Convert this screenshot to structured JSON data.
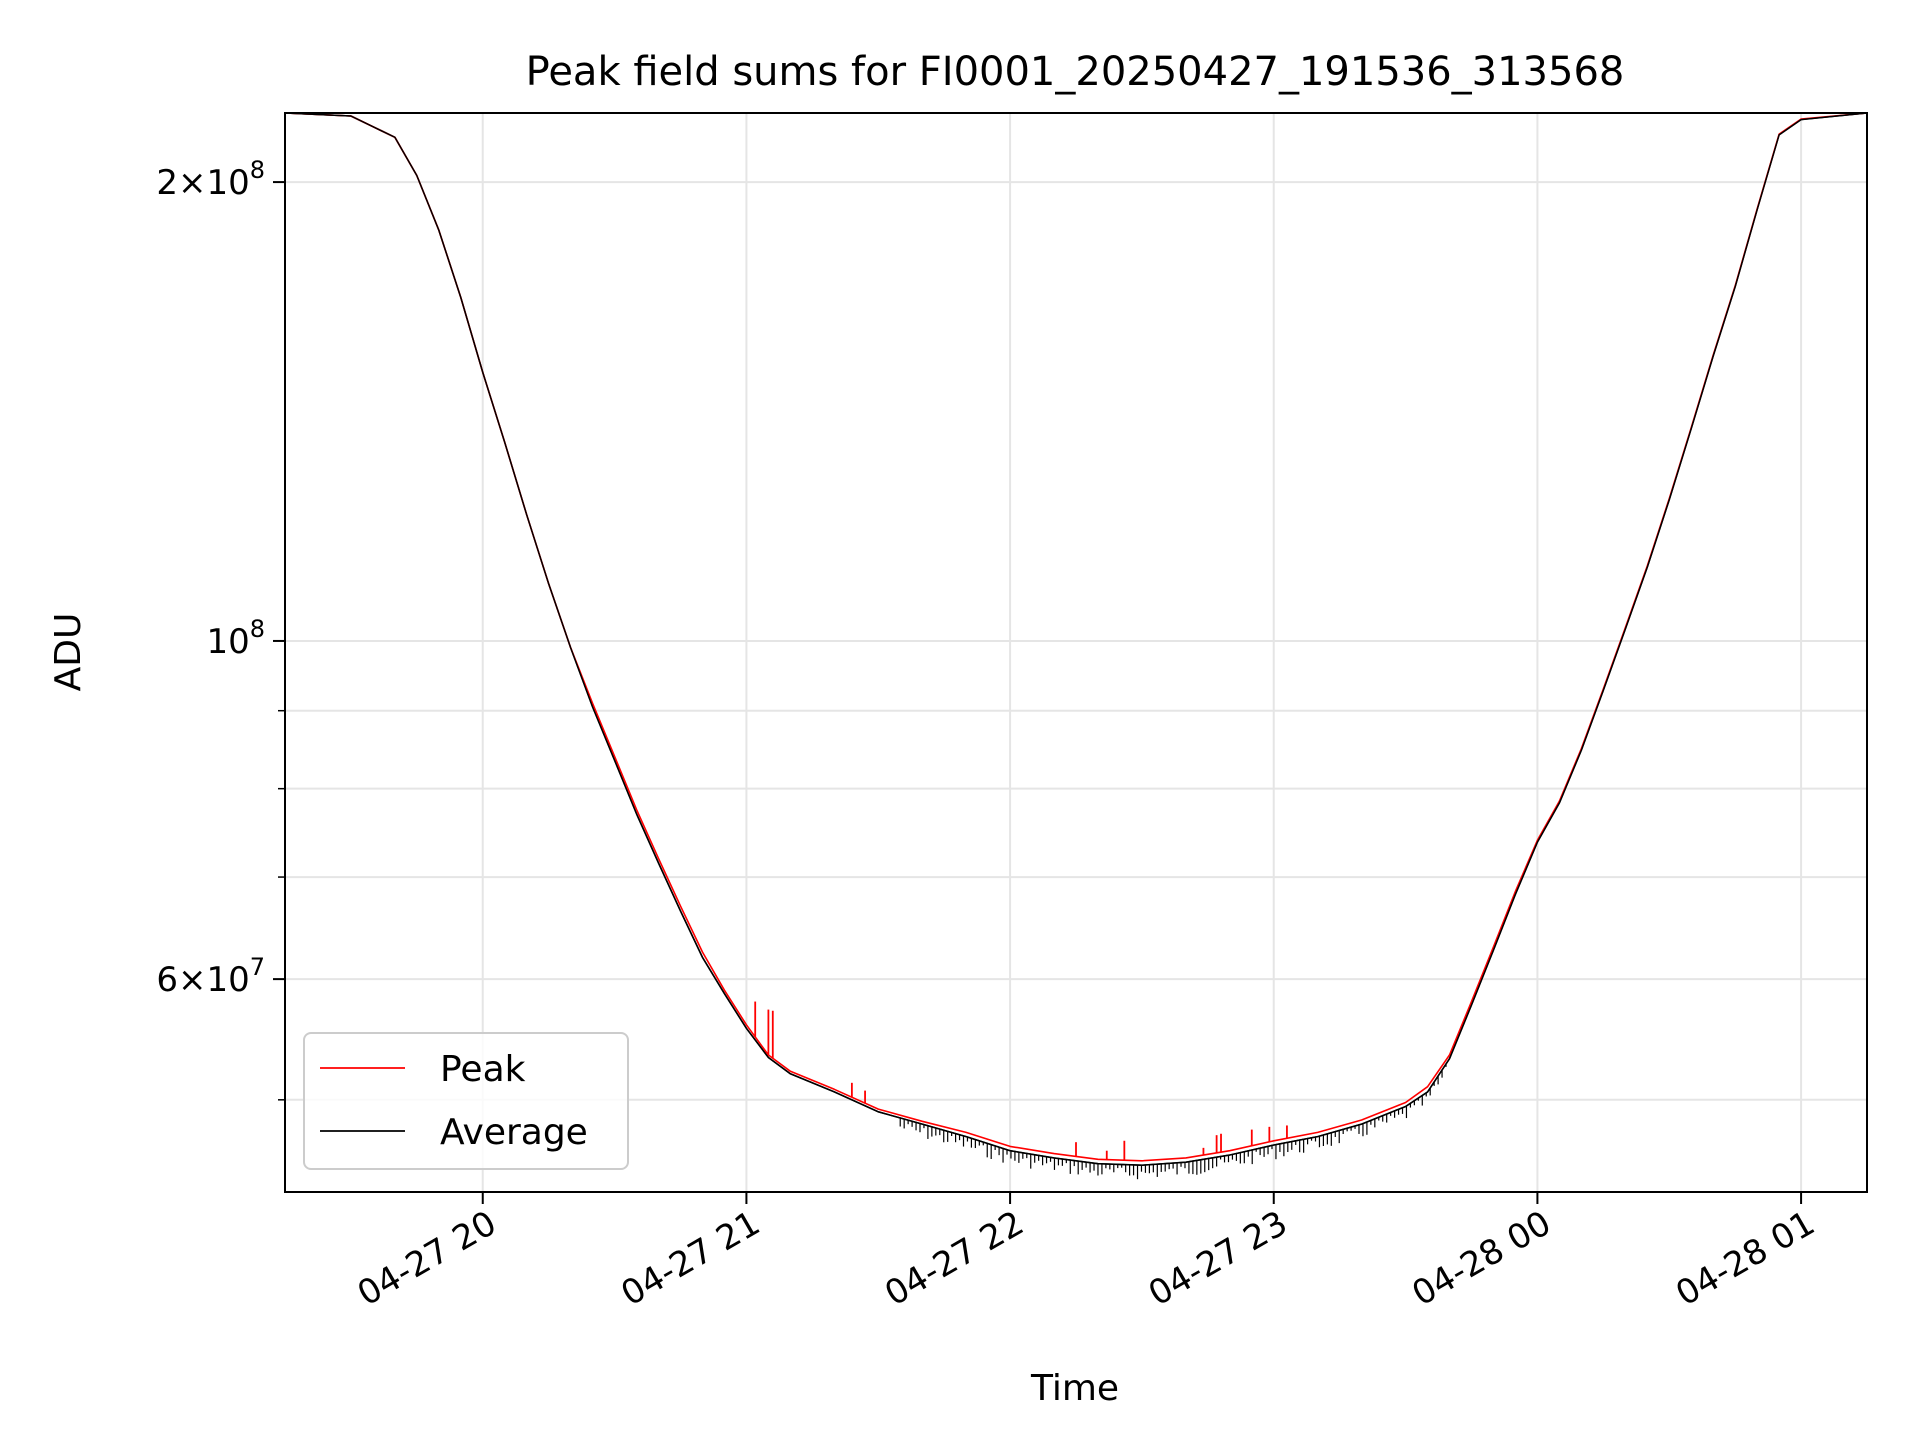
{
  "chart_data": {
    "type": "line",
    "title": "Peak field sums for FI0001_20250427_191536_313568",
    "xlabel": "Time",
    "ylabel": "ADU",
    "y_scale": "log",
    "grid": true,
    "legend_position": "lower-left",
    "xlim": [
      "04-27 19:15",
      "04-28 01:15"
    ],
    "ylim": [
      43500000,
      222000000
    ],
    "x_ticks": [
      {
        "t": "04-27 20:00",
        "label": "04-27 20"
      },
      {
        "t": "04-27 21:00",
        "label": "04-27 21"
      },
      {
        "t": "04-27 22:00",
        "label": "04-27 22"
      },
      {
        "t": "04-27 23:00",
        "label": "04-27 23"
      },
      {
        "t": "04-28 00:00",
        "label": "04-28 00"
      },
      {
        "t": "04-28 01:00",
        "label": "04-28 01"
      }
    ],
    "y_major_ticks": [
      {
        "value": 60000000,
        "base": "6",
        "exp": "7"
      },
      {
        "value": 100000000,
        "base": "",
        "exp": "8"
      },
      {
        "value": 200000000,
        "base": "2",
        "exp": "8"
      }
    ],
    "y_minor_ticks": [
      50000000,
      70000000,
      80000000,
      90000000
    ],
    "series": [
      {
        "name": "Peak",
        "color": "#ff0000",
        "x": [
          "04-27 19:15",
          "04-27 19:30",
          "04-27 19:40",
          "04-27 19:45",
          "04-27 19:50",
          "04-27 19:55",
          "04-27 20:00",
          "04-27 20:05",
          "04-27 20:10",
          "04-27 20:15",
          "04-27 20:20",
          "04-27 20:25",
          "04-27 20:30",
          "04-27 20:35",
          "04-27 20:40",
          "04-27 20:45",
          "04-27 20:50",
          "04-27 20:55",
          "04-27 21:00",
          "04-27 21:05",
          "04-27 21:10",
          "04-27 21:20",
          "04-27 21:30",
          "04-27 21:40",
          "04-27 21:50",
          "04-27 22:00",
          "04-27 22:10",
          "04-27 22:20",
          "04-27 22:30",
          "04-27 22:40",
          "04-27 22:50",
          "04-27 23:00",
          "04-27 23:10",
          "04-27 23:20",
          "04-27 23:30",
          "04-27 23:35",
          "04-27 23:40",
          "04-27 23:45",
          "04-27 23:50",
          "04-27 23:55",
          "04-28 00:00",
          "04-28 00:05",
          "04-28 00:10",
          "04-28 00:15",
          "04-28 00:20",
          "04-28 00:25",
          "04-28 00:30",
          "04-28 00:35",
          "04-28 00:40",
          "04-28 00:45",
          "04-28 00:50",
          "04-28 00:55",
          "04-28 01:00",
          "04-28 01:15"
        ],
        "values": [
          222000000,
          221000000,
          214000000,
          202000000,
          186000000,
          168000000,
          150000000,
          135000000,
          121000000,
          109000000,
          99000000,
          91000000,
          84000000,
          77500000,
          72000000,
          67000000,
          62500000,
          59000000,
          56000000,
          53500000,
          52200000,
          50800000,
          49300000,
          48400000,
          47600000,
          46600000,
          46100000,
          45700000,
          45600000,
          45800000,
          46300000,
          47000000,
          47600000,
          48500000,
          49800000,
          51000000,
          53500000,
          58000000,
          63000000,
          68500000,
          74000000,
          78500000,
          85000000,
          93000000,
          102000000,
          112000000,
          124000000,
          138000000,
          154000000,
          171000000,
          192000000,
          215000000,
          220000000,
          222000000
        ],
        "spikes": [
          {
            "t": "04-27 21:02",
            "value": 58000000
          },
          {
            "t": "04-27 21:05",
            "value": 57300000
          },
          {
            "t": "04-27 21:06",
            "value": 57200000
          },
          {
            "t": "04-27 21:24",
            "value": 51300000
          },
          {
            "t": "04-27 21:27",
            "value": 50700000
          },
          {
            "t": "04-27 22:15",
            "value": 46900000
          },
          {
            "t": "04-27 22:22",
            "value": 46300000
          },
          {
            "t": "04-27 22:26",
            "value": 47000000
          },
          {
            "t": "04-27 22:44",
            "value": 46500000
          },
          {
            "t": "04-27 22:47",
            "value": 47400000
          },
          {
            "t": "04-27 22:48",
            "value": 47500000
          },
          {
            "t": "04-27 22:55",
            "value": 47800000
          },
          {
            "t": "04-27 22:59",
            "value": 48000000
          },
          {
            "t": "04-27 23:03",
            "value": 48100000
          }
        ]
      },
      {
        "name": "Average",
        "color": "#000000",
        "x": [
          "04-27 19:15",
          "04-27 19:30",
          "04-27 19:40",
          "04-27 19:45",
          "04-27 19:50",
          "04-27 19:55",
          "04-27 20:00",
          "04-27 20:05",
          "04-27 20:10",
          "04-27 20:15",
          "04-27 20:20",
          "04-27 20:25",
          "04-27 20:30",
          "04-27 20:35",
          "04-27 20:40",
          "04-27 20:45",
          "04-27 20:50",
          "04-27 20:55",
          "04-27 21:00",
          "04-27 21:05",
          "04-27 21:10",
          "04-27 21:20",
          "04-27 21:30",
          "04-27 21:40",
          "04-27 21:50",
          "04-27 22:00",
          "04-27 22:10",
          "04-27 22:20",
          "04-27 22:30",
          "04-27 22:40",
          "04-27 22:50",
          "04-27 23:00",
          "04-27 23:10",
          "04-27 23:20",
          "04-27 23:30",
          "04-27 23:35",
          "04-27 23:40",
          "04-27 23:45",
          "04-27 23:50",
          "04-27 23:55",
          "04-28 00:00",
          "04-28 00:05",
          "04-28 00:10",
          "04-28 00:15",
          "04-28 00:20",
          "04-28 00:25",
          "04-28 00:30",
          "04-28 00:35",
          "04-28 00:40",
          "04-28 00:45",
          "04-28 00:50",
          "04-28 00:55",
          "04-28 01:00",
          "04-28 01:15"
        ],
        "values": [
          222000000,
          221000000,
          214000000,
          202000000,
          186000000,
          168000000,
          150000000,
          135000000,
          121000000,
          109000000,
          99000000,
          90500000,
          83500000,
          77000000,
          71500000,
          66500000,
          62000000,
          58700000,
          55700000,
          53300000,
          52000000,
          50600000,
          49100000,
          48200000,
          47300000,
          46300000,
          45800000,
          45400000,
          45300000,
          45500000,
          46000000,
          46700000,
          47300000,
          48200000,
          49500000,
          50600000,
          53200000,
          57700000,
          62700000,
          68200000,
          73800000,
          78300000,
          84800000,
          92800000,
          101800000,
          111800000,
          123800000,
          137800000,
          153800000,
          170800000,
          191800000,
          214800000,
          219800000,
          222000000
        ],
        "noise_range": [
          "04-27 21:35",
          "04-27 23:40"
        ]
      }
    ]
  }
}
